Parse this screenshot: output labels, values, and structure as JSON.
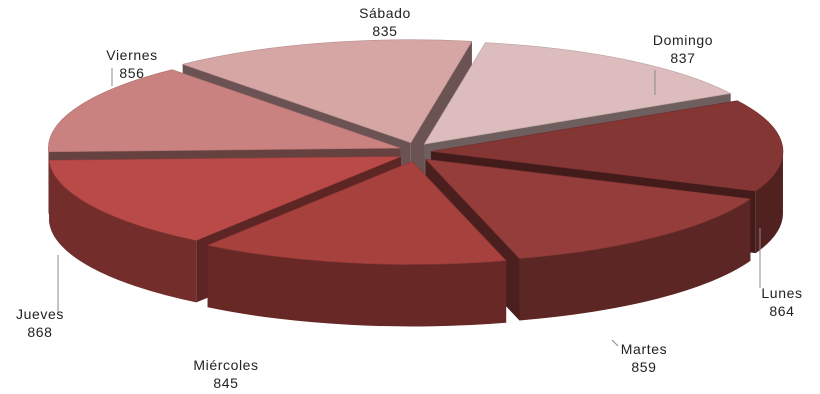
{
  "chart_data": {
    "type": "pie",
    "three_d": true,
    "exploded": true,
    "legend": "none",
    "categories": [
      "Domingo",
      "Lunes",
      "Martes",
      "Miércoles",
      "Jueves",
      "Viernes",
      "Sábado"
    ],
    "values": [
      837,
      864,
      859,
      845,
      868,
      856,
      835
    ],
    "colors": [
      "#dcbcbc",
      "#833633",
      "#943d3a",
      "#a6413e",
      "#b94a47",
      "#c98280",
      "#d6a6a5"
    ]
  }
}
